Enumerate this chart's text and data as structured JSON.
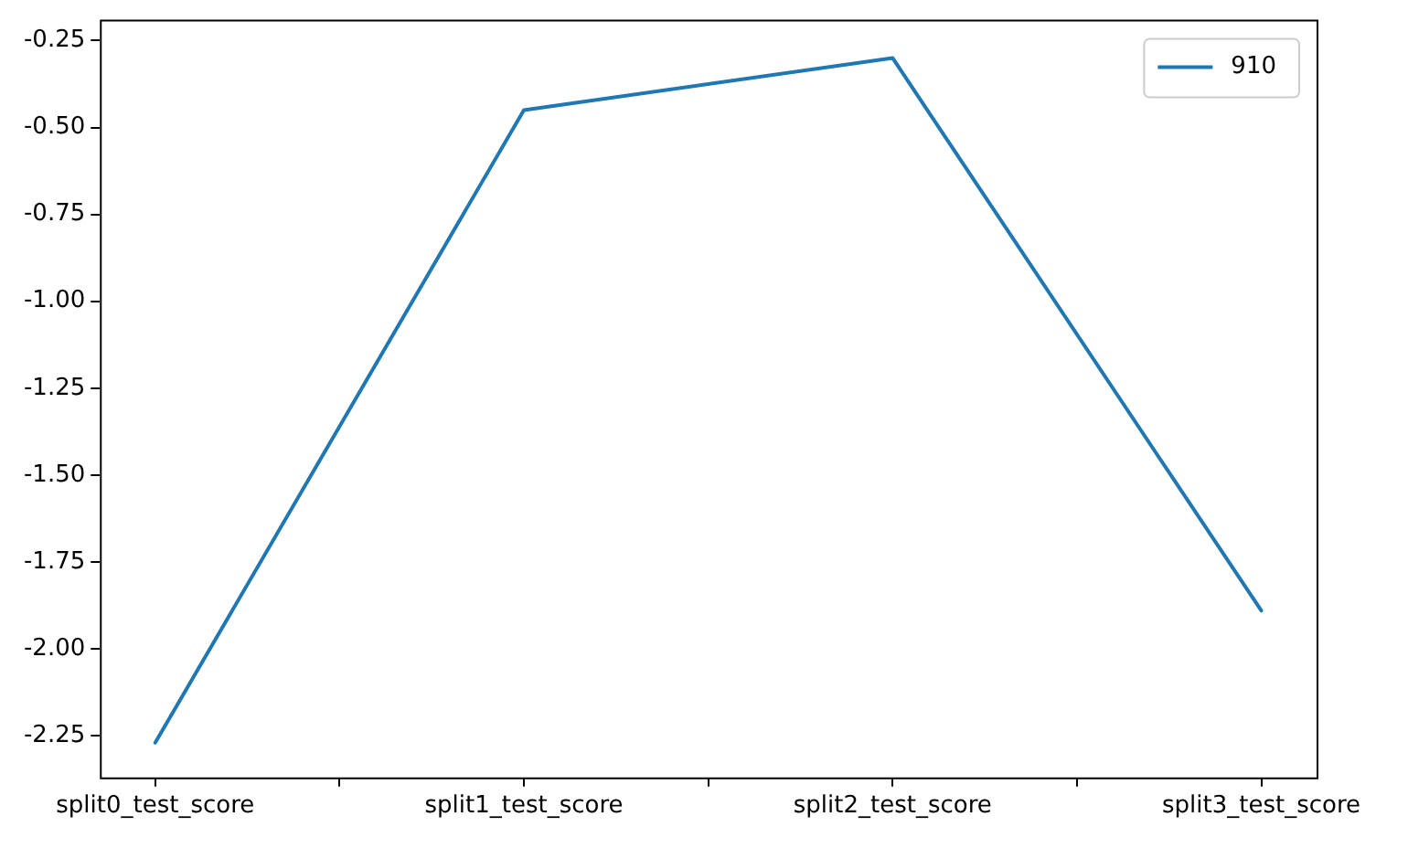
{
  "chart_data": {
    "type": "line",
    "categories": [
      "split0_test_score",
      "split1_test_score",
      "split2_test_score",
      "split3_test_score"
    ],
    "series": [
      {
        "name": "910",
        "color": "#1f77b4",
        "values": [
          -2.27,
          -0.45,
          -0.3,
          -1.89
        ]
      }
    ],
    "ylim": [
      -2.37,
      -0.19
    ],
    "yticks": [
      -2.25,
      {
        "value": -2.0,
        "label": "-2.00"
      },
      -1.75,
      {
        "value": -1.5,
        "label": "-1.50"
      },
      -1.25,
      {
        "value": -1.0,
        "label": "-1.00"
      },
      -0.75,
      {
        "value": -0.5,
        "label": "-0.50"
      },
      -0.25
    ],
    "legend": "top right",
    "grid": false,
    "marker": "none",
    "line_style": "solid"
  }
}
